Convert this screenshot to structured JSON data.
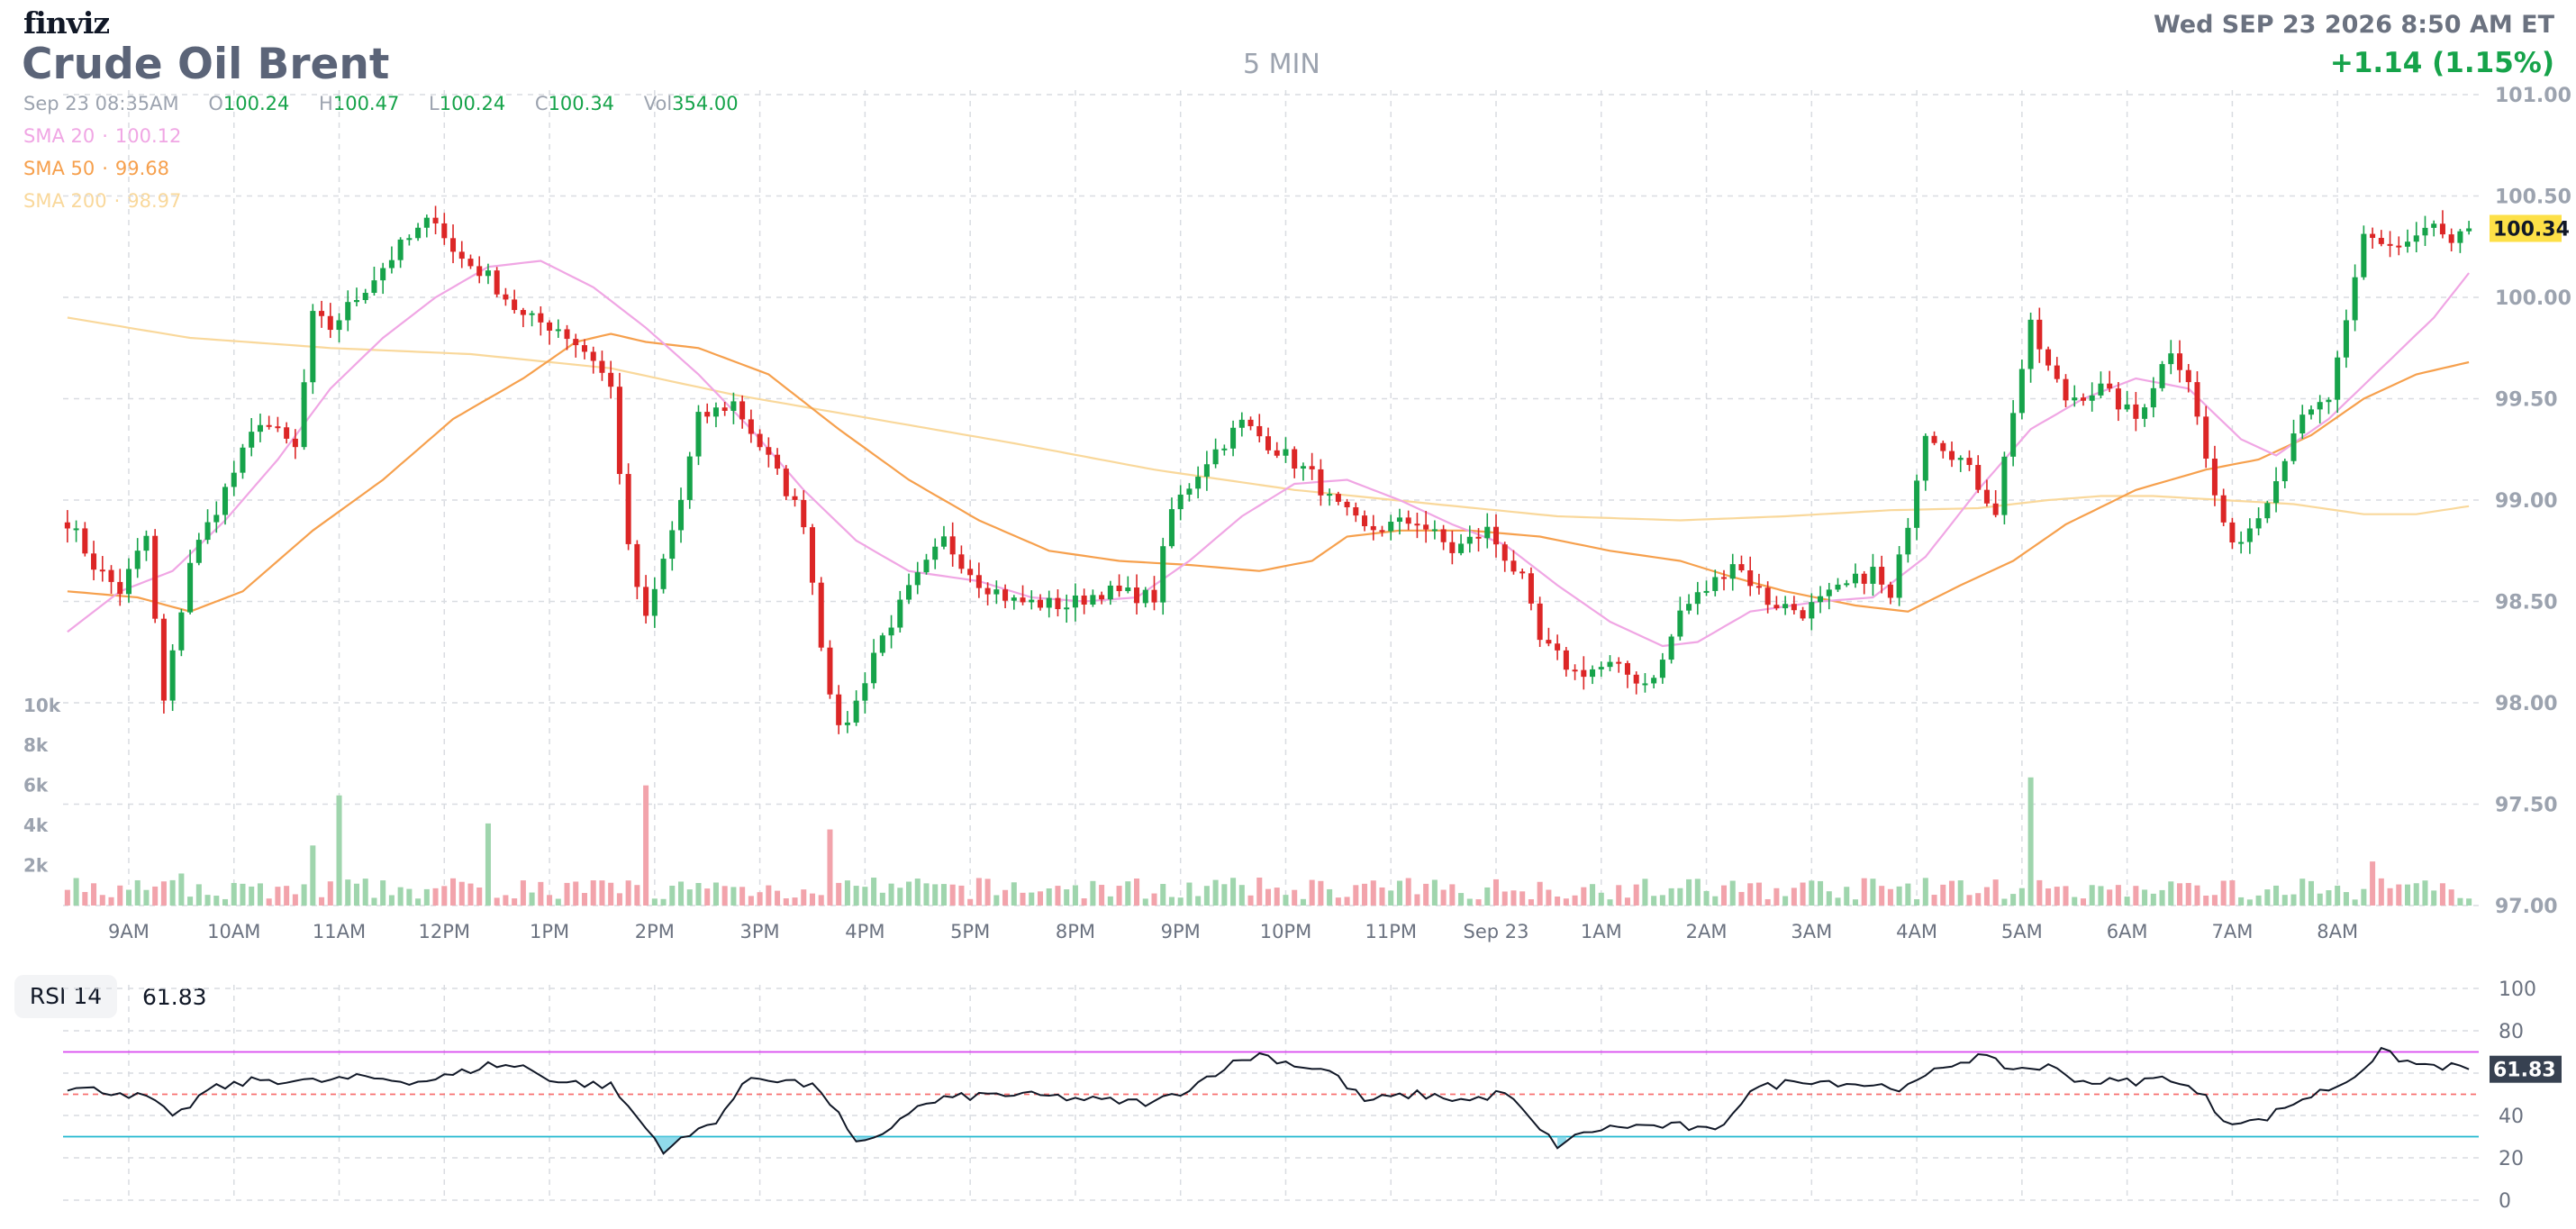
{
  "header": {
    "logo": "finviz",
    "title": "Crude Oil Brent",
    "timeframe": "5 MIN",
    "datetime": "Wed SEP 23 2026 8:50 AM ET",
    "change": "+1.14 (1.15%)"
  },
  "ohlcv": {
    "date": "Sep 23 08:35AM",
    "o_label": "O",
    "o": "100.24",
    "h_label": "H",
    "h": "100.47",
    "l_label": "L",
    "l": "100.24",
    "c_label": "C",
    "c": "100.34",
    "vol_label": "Vol",
    "vol": "354.00"
  },
  "indicators": [
    {
      "label": "SMA 20",
      "value": "100.12",
      "color": "#f0a6e4"
    },
    {
      "label": "SMA 50",
      "value": "99.68",
      "color": "#f6a04d"
    },
    {
      "label": "SMA 200",
      "value": "98.97",
      "color": "#f9d89b"
    }
  ],
  "rsi": {
    "label": "RSI 14",
    "value": "61.83",
    "last_label": "61.83"
  },
  "last_price_label": "100.34",
  "colors": {
    "up": "#16a34a",
    "down": "#dc2626",
    "sma20": "#f0a6e4",
    "sma50": "#f6a04d",
    "sma200": "#f9d89b",
    "rsi_overbought": "#d946ef",
    "rsi_oversold": "#22b8cf",
    "highlight": "#fde047"
  },
  "chart_data": {
    "type": "candlestick",
    "ylim": [
      97.0,
      101.0
    ],
    "yticks": [
      "101.00",
      "100.50",
      "100.00",
      "99.50",
      "99.00",
      "98.50",
      "98.00",
      "97.50",
      "97.00"
    ],
    "volume_ticks": [
      "10k",
      "8k",
      "6k",
      "4k",
      "2k"
    ],
    "xticks": [
      "9AM",
      "10AM",
      "11AM",
      "12PM",
      "1PM",
      "2PM",
      "3PM",
      "4PM",
      "5PM",
      "8PM",
      "9PM",
      "10PM",
      "11PM",
      "Sep 23",
      "1AM",
      "2AM",
      "3AM",
      "4AM",
      "5AM",
      "6AM",
      "7AM",
      "8AM"
    ],
    "price_keypoints": [
      [
        0,
        98.9
      ],
      [
        3,
        98.68
      ],
      [
        6,
        98.55
      ],
      [
        9,
        98.82
      ],
      [
        10,
        98.4
      ],
      [
        11,
        98.0
      ],
      [
        14,
        98.7
      ],
      [
        18,
        99.05
      ],
      [
        22,
        99.4
      ],
      [
        26,
        99.25
      ],
      [
        28,
        99.9
      ],
      [
        30,
        99.85
      ],
      [
        34,
        100.05
      ],
      [
        38,
        100.25
      ],
      [
        42,
        100.4
      ],
      [
        44,
        100.22
      ],
      [
        48,
        100.1
      ],
      [
        52,
        99.9
      ],
      [
        56,
        99.85
      ],
      [
        60,
        99.7
      ],
      [
        62,
        99.55
      ],
      [
        64,
        98.75
      ],
      [
        66,
        98.4
      ],
      [
        68,
        98.7
      ],
      [
        70,
        99.0
      ],
      [
        72,
        99.4
      ],
      [
        76,
        99.48
      ],
      [
        80,
        99.2
      ],
      [
        84,
        98.9
      ],
      [
        86,
        98.3
      ],
      [
        88,
        97.85
      ],
      [
        90,
        98.0
      ],
      [
        92,
        98.25
      ],
      [
        96,
        98.55
      ],
      [
        100,
        98.8
      ],
      [
        104,
        98.6
      ],
      [
        108,
        98.5
      ],
      [
        114,
        98.48
      ],
      [
        118,
        98.55
      ],
      [
        124,
        98.52
      ],
      [
        126,
        98.95
      ],
      [
        130,
        99.2
      ],
      [
        134,
        99.38
      ],
      [
        138,
        99.25
      ],
      [
        142,
        99.12
      ],
      [
        144,
        99.0
      ],
      [
        148,
        98.85
      ],
      [
        154,
        98.9
      ],
      [
        158,
        98.75
      ],
      [
        162,
        98.85
      ],
      [
        166,
        98.6
      ],
      [
        168,
        98.3
      ],
      [
        172,
        98.15
      ],
      [
        176,
        98.18
      ],
      [
        180,
        98.1
      ],
      [
        182,
        98.2
      ],
      [
        184,
        98.45
      ],
      [
        188,
        98.6
      ],
      [
        190,
        98.7
      ],
      [
        194,
        98.5
      ],
      [
        198,
        98.45
      ],
      [
        202,
        98.55
      ],
      [
        206,
        98.65
      ],
      [
        208,
        98.5
      ],
      [
        210,
        98.9
      ],
      [
        212,
        99.35
      ],
      [
        216,
        99.2
      ],
      [
        220,
        98.95
      ],
      [
        222,
        99.45
      ],
      [
        224,
        99.85
      ],
      [
        226,
        99.65
      ],
      [
        228,
        99.5
      ],
      [
        232,
        99.55
      ],
      [
        236,
        99.4
      ],
      [
        240,
        99.75
      ],
      [
        242,
        99.6
      ],
      [
        244,
        99.2
      ],
      [
        246,
        98.85
      ],
      [
        248,
        98.8
      ],
      [
        252,
        99.1
      ],
      [
        254,
        99.35
      ],
      [
        258,
        99.5
      ],
      [
        260,
        99.85
      ],
      [
        262,
        100.3
      ],
      [
        266,
        100.25
      ],
      [
        270,
        100.35
      ],
      [
        272,
        100.25
      ],
      [
        274,
        100.34
      ]
    ],
    "volume_spikes": [
      [
        13,
        1600
      ],
      [
        28,
        3000
      ],
      [
        31,
        5500
      ],
      [
        48,
        4100
      ],
      [
        66,
        6000
      ],
      [
        87,
        3800
      ],
      [
        224,
        6400
      ],
      [
        263,
        2200
      ]
    ],
    "sma_keypoints": {
      "sma20": [
        [
          0,
          98.35
        ],
        [
          6,
          98.55
        ],
        [
          12,
          98.65
        ],
        [
          18,
          98.9
        ],
        [
          24,
          99.2
        ],
        [
          30,
          99.55
        ],
        [
          36,
          99.8
        ],
        [
          42,
          100.0
        ],
        [
          48,
          100.15
        ],
        [
          54,
          100.18
        ],
        [
          60,
          100.05
        ],
        [
          66,
          99.85
        ],
        [
          72,
          99.62
        ],
        [
          78,
          99.35
        ],
        [
          84,
          99.05
        ],
        [
          90,
          98.8
        ],
        [
          96,
          98.65
        ],
        [
          104,
          98.6
        ],
        [
          110,
          98.52
        ],
        [
          116,
          98.5
        ],
        [
          122,
          98.52
        ],
        [
          128,
          98.7
        ],
        [
          134,
          98.92
        ],
        [
          140,
          99.08
        ],
        [
          146,
          99.1
        ],
        [
          152,
          99.0
        ],
        [
          158,
          98.88
        ],
        [
          164,
          98.78
        ],
        [
          170,
          98.58
        ],
        [
          176,
          98.4
        ],
        [
          182,
          98.28
        ],
        [
          186,
          98.3
        ],
        [
          192,
          98.45
        ],
        [
          200,
          98.5
        ],
        [
          206,
          98.52
        ],
        [
          212,
          98.72
        ],
        [
          218,
          99.05
        ],
        [
          224,
          99.35
        ],
        [
          230,
          99.5
        ],
        [
          236,
          99.6
        ],
        [
          242,
          99.55
        ],
        [
          248,
          99.3
        ],
        [
          252,
          99.22
        ],
        [
          258,
          99.4
        ],
        [
          264,
          99.65
        ],
        [
          270,
          99.9
        ],
        [
          274,
          100.12
        ]
      ],
      "sma50": [
        [
          0,
          98.55
        ],
        [
          8,
          98.52
        ],
        [
          14,
          98.45
        ],
        [
          20,
          98.55
        ],
        [
          28,
          98.85
        ],
        [
          36,
          99.1
        ],
        [
          44,
          99.4
        ],
        [
          52,
          99.6
        ],
        [
          58,
          99.78
        ],
        [
          62,
          99.82
        ],
        [
          66,
          99.78
        ],
        [
          72,
          99.75
        ],
        [
          80,
          99.62
        ],
        [
          88,
          99.35
        ],
        [
          96,
          99.1
        ],
        [
          104,
          98.9
        ],
        [
          112,
          98.75
        ],
        [
          120,
          98.7
        ],
        [
          128,
          98.68
        ],
        [
          136,
          98.65
        ],
        [
          142,
          98.7
        ],
        [
          146,
          98.82
        ],
        [
          152,
          98.85
        ],
        [
          160,
          98.85
        ],
        [
          168,
          98.82
        ],
        [
          176,
          98.75
        ],
        [
          184,
          98.7
        ],
        [
          190,
          98.62
        ],
        [
          196,
          98.55
        ],
        [
          204,
          98.48
        ],
        [
          210,
          98.45
        ],
        [
          216,
          98.58
        ],
        [
          222,
          98.7
        ],
        [
          228,
          98.88
        ],
        [
          236,
          99.05
        ],
        [
          244,
          99.15
        ],
        [
          250,
          99.2
        ],
        [
          256,
          99.32
        ],
        [
          262,
          99.5
        ],
        [
          268,
          99.62
        ],
        [
          274,
          99.68
        ]
      ],
      "sma200": [
        [
          0,
          99.9
        ],
        [
          14,
          99.8
        ],
        [
          30,
          99.75
        ],
        [
          46,
          99.72
        ],
        [
          62,
          99.65
        ],
        [
          76,
          99.52
        ],
        [
          92,
          99.4
        ],
        [
          108,
          99.28
        ],
        [
          124,
          99.15
        ],
        [
          140,
          99.05
        ],
        [
          156,
          98.98
        ],
        [
          170,
          98.92
        ],
        [
          184,
          98.9
        ],
        [
          196,
          98.92
        ],
        [
          208,
          98.95
        ],
        [
          218,
          98.96
        ],
        [
          226,
          99.0
        ],
        [
          232,
          99.02
        ],
        [
          238,
          99.02
        ],
        [
          246,
          99.0
        ],
        [
          254,
          98.98
        ],
        [
          262,
          98.93
        ],
        [
          268,
          98.93
        ],
        [
          274,
          98.97
        ]
      ]
    },
    "rsi_ylim": [
      0,
      100
    ],
    "rsi_yticks": [
      "100",
      "80",
      "60",
      "40",
      "20",
      "0"
    ],
    "rsi_levels": {
      "overbought": 70,
      "mid": 50,
      "oversold": 30
    },
    "rsi_keypoints": [
      [
        0,
        53
      ],
      [
        6,
        51
      ],
      [
        10,
        47
      ],
      [
        12,
        38
      ],
      [
        16,
        52
      ],
      [
        22,
        57
      ],
      [
        28,
        56
      ],
      [
        34,
        58
      ],
      [
        40,
        56
      ],
      [
        44,
        59
      ],
      [
        48,
        64
      ],
      [
        52,
        63
      ],
      [
        56,
        56
      ],
      [
        62,
        54
      ],
      [
        66,
        34
      ],
      [
        68,
        24
      ],
      [
        70,
        28
      ],
      [
        74,
        38
      ],
      [
        78,
        58
      ],
      [
        82,
        57
      ],
      [
        86,
        52
      ],
      [
        88,
        40
      ],
      [
        90,
        26
      ],
      [
        92,
        28
      ],
      [
        96,
        42
      ],
      [
        100,
        48
      ],
      [
        106,
        50
      ],
      [
        112,
        49
      ],
      [
        118,
        47
      ],
      [
        124,
        46
      ],
      [
        128,
        53
      ],
      [
        132,
        63
      ],
      [
        136,
        69
      ],
      [
        140,
        64
      ],
      [
        144,
        61
      ],
      [
        148,
        47
      ],
      [
        154,
        50
      ],
      [
        160,
        47
      ],
      [
        164,
        51
      ],
      [
        168,
        33
      ],
      [
        170,
        26
      ],
      [
        174,
        33
      ],
      [
        178,
        35
      ],
      [
        184,
        35
      ],
      [
        188,
        32
      ],
      [
        192,
        52
      ],
      [
        198,
        57
      ],
      [
        204,
        55
      ],
      [
        210,
        53
      ],
      [
        214,
        63
      ],
      [
        218,
        68
      ],
      [
        222,
        62
      ],
      [
        226,
        63
      ],
      [
        230,
        56
      ],
      [
        236,
        56
      ],
      [
        240,
        58
      ],
      [
        244,
        48
      ],
      [
        246,
        38
      ],
      [
        250,
        37
      ],
      [
        254,
        46
      ],
      [
        260,
        56
      ],
      [
        264,
        70
      ],
      [
        268,
        64
      ],
      [
        272,
        63
      ],
      [
        274,
        61.83
      ]
    ]
  }
}
